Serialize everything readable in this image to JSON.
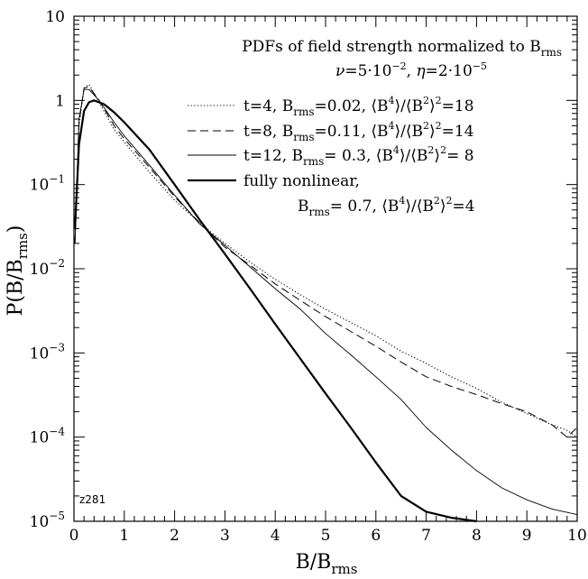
{
  "chart_data": {
    "type": "line",
    "title": "PDFs of field strength normalized to B",
    "title_sub": "rms",
    "params": {
      "nu_sym": "ν",
      "nu_val": "=5·10",
      "nu_exp": "−2",
      "sep": ", ",
      "eta_sym": "η",
      "eta_val": "=2·10",
      "eta_exp": "−5"
    },
    "xlabel": {
      "base": "B/B",
      "sub": "rms"
    },
    "ylabel": {
      "base": "P(B/B",
      "sub": "rms",
      "close": ")"
    },
    "xlim": [
      0,
      10
    ],
    "ylim": [
      1e-05,
      10
    ],
    "y_scale": "log",
    "x_ticks": [
      "0",
      "1",
      "2",
      "3",
      "4",
      "5",
      "6",
      "7",
      "8",
      "9",
      "10"
    ],
    "y_ticks": [
      {
        "base": "10",
        "exp": "−5"
      },
      {
        "base": "10",
        "exp": "−4"
      },
      {
        "base": "10",
        "exp": "−3"
      },
      {
        "base": "10",
        "exp": "−2"
      },
      {
        "base": "10",
        "exp": "−1"
      },
      {
        "base": "1",
        "exp": ""
      },
      {
        "base": "10",
        "exp": ""
      }
    ],
    "tag": "z281",
    "series": [
      {
        "name": "t=4",
        "legend": [
          {
            "t": "t=4,   B"
          },
          {
            "t": "rms",
            "sub": true
          },
          {
            "t": "=0.02, ⟨B"
          },
          {
            "t": "4",
            "sup": true
          },
          {
            "t": "⟩/⟨B"
          },
          {
            "t": "2",
            "sup": true
          },
          {
            "t": "⟩"
          },
          {
            "t": "2",
            "sup": true
          },
          {
            "t": "=18"
          }
        ],
        "style": "dotted",
        "x": [
          0.02,
          0.1,
          0.2,
          0.3,
          0.5,
          0.8,
          1.0,
          1.5,
          2.0,
          2.5,
          3.0,
          3.5,
          4.0,
          4.5,
          5.0,
          5.5,
          6.0,
          6.5,
          7.0,
          7.5,
          8.0,
          8.5,
          9.0,
          9.5,
          9.8,
          10.0
        ],
        "y": [
          0.02,
          0.5,
          1.4,
          1.55,
          0.95,
          0.45,
          0.32,
          0.14,
          0.065,
          0.035,
          0.02,
          0.012,
          0.0075,
          0.0049,
          0.0033,
          0.0023,
          0.0016,
          0.00105,
          0.00075,
          0.00052,
          0.00038,
          0.00026,
          0.00019,
          0.00014,
          0.00012,
          0.0001
        ]
      },
      {
        "name": "t=8",
        "legend": [
          {
            "t": "t=8,   B"
          },
          {
            "t": "rms",
            "sub": true
          },
          {
            "t": "=0.11, ⟨B"
          },
          {
            "t": "4",
            "sup": true
          },
          {
            "t": "⟩/⟨B"
          },
          {
            "t": "2",
            "sup": true
          },
          {
            "t": "⟩"
          },
          {
            "t": "2",
            "sup": true
          },
          {
            "t": "=14"
          }
        ],
        "style": "dashed",
        "x": [
          0.02,
          0.1,
          0.2,
          0.3,
          0.5,
          0.8,
          1.0,
          1.5,
          2.0,
          2.5,
          3.0,
          3.5,
          4.0,
          4.5,
          5.0,
          5.5,
          6.0,
          6.5,
          7.0,
          7.5,
          8.0,
          8.5,
          9.0,
          9.5,
          9.8,
          10.0
        ],
        "y": [
          0.02,
          0.55,
          1.4,
          1.45,
          1.0,
          0.5,
          0.35,
          0.16,
          0.072,
          0.035,
          0.018,
          0.011,
          0.0066,
          0.0042,
          0.0027,
          0.0018,
          0.0012,
          0.00078,
          0.00052,
          0.0004,
          0.00032,
          0.00025,
          0.0002,
          0.00014,
          0.0001,
          0.00013
        ]
      },
      {
        "name": "t=12",
        "legend": [
          {
            "t": "t=12, B"
          },
          {
            "t": "rms",
            "sub": true
          },
          {
            "t": "=  0.3, ⟨B"
          },
          {
            "t": "4",
            "sup": true
          },
          {
            "t": "⟩/⟨B"
          },
          {
            "t": "2",
            "sup": true
          },
          {
            "t": "⟩"
          },
          {
            "t": "2",
            "sup": true
          },
          {
            "t": "=  8"
          }
        ],
        "style": "thin",
        "x": [
          0.02,
          0.1,
          0.2,
          0.3,
          0.5,
          0.8,
          1.0,
          1.5,
          2.0,
          2.5,
          3.0,
          3.5,
          4.0,
          4.5,
          5.0,
          5.5,
          6.0,
          6.5,
          7.0,
          7.5,
          8.0,
          8.5,
          9.0,
          9.5,
          10.0
        ],
        "y": [
          0.02,
          0.6,
          1.35,
          1.35,
          1.0,
          0.55,
          0.38,
          0.17,
          0.075,
          0.034,
          0.019,
          0.0105,
          0.0058,
          0.0033,
          0.0017,
          0.00095,
          0.00052,
          0.00028,
          0.00013,
          7e-05,
          4e-05,
          2.5e-05,
          1.8e-05,
          1.4e-05,
          1.2e-05
        ]
      },
      {
        "name": "fully nonlinear",
        "legend": [
          {
            "t": "fully nonlinear,"
          }
        ],
        "legend2": [
          {
            "t": "B"
          },
          {
            "t": "rms",
            "sub": true
          },
          {
            "t": "=  0.7, ⟨B"
          },
          {
            "t": "4",
            "sup": true
          },
          {
            "t": "⟩/⟨B"
          },
          {
            "t": "2",
            "sup": true
          },
          {
            "t": "⟩"
          },
          {
            "t": "2",
            "sup": true
          },
          {
            "t": "=4"
          }
        ],
        "style": "thick",
        "x": [
          0.02,
          0.1,
          0.2,
          0.3,
          0.4,
          0.6,
          0.8,
          1.0,
          1.5,
          2.0,
          2.5,
          3.0,
          3.5,
          4.0,
          4.5,
          5.0,
          5.5,
          6.0,
          6.5,
          7.0,
          7.5,
          8.0
        ],
        "y": [
          0.03,
          0.3,
          0.75,
          0.95,
          1.0,
          0.9,
          0.72,
          0.55,
          0.26,
          0.1,
          0.038,
          0.015,
          0.0058,
          0.0022,
          0.00085,
          0.00033,
          0.00013,
          5e-05,
          2e-05,
          1.3e-05,
          1.1e-05,
          1e-05
        ]
      }
    ]
  }
}
